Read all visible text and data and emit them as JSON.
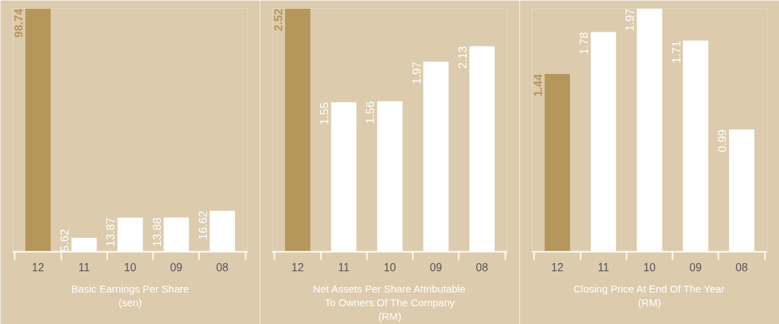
{
  "chart_data": [
    {
      "type": "bar",
      "xlabel": "Basic Earnings Per Share\n(sen)",
      "categories": [
        "12",
        "11",
        "10",
        "09",
        "08"
      ],
      "values": [
        98.74,
        5.62,
        13.87,
        13.88,
        16.62
      ],
      "colors": [
        "#b5975b",
        "#ffffff",
        "#ffffff",
        "#ffffff",
        "#ffffff"
      ],
      "data_labels": true
    },
    {
      "type": "bar",
      "xlabel": "Net Assets Per Share Attributable\nTo Owners Of The Company\n(RM)",
      "categories": [
        "12",
        "11",
        "10",
        "09",
        "08"
      ],
      "values": [
        2.52,
        1.55,
        1.56,
        1.97,
        2.13
      ],
      "colors": [
        "#b5975b",
        "#ffffff",
        "#ffffff",
        "#ffffff",
        "#ffffff"
      ],
      "data_labels": true
    },
    {
      "type": "bar",
      "xlabel": "Closing Price At End Of The Year\n(RM)",
      "categories": [
        "12",
        "11",
        "10",
        "09",
        "08"
      ],
      "values": [
        1.44,
        1.78,
        1.97,
        1.71,
        0.99
      ],
      "colors": [
        "#b5975b",
        "#ffffff",
        "#ffffff",
        "#ffffff",
        "#ffffff"
      ],
      "data_labels": true
    }
  ]
}
